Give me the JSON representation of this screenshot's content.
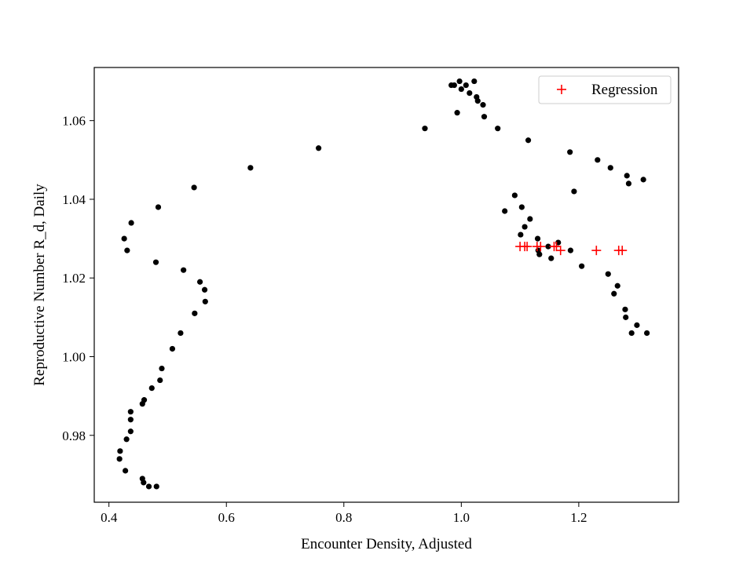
{
  "chart_data": {
    "type": "scatter",
    "title": "",
    "xlabel": "Encounter Density, Adjusted",
    "ylabel": "Reproductive Number R_d, Daily",
    "xlim": [
      0.375,
      1.37
    ],
    "ylim": [
      0.963,
      1.0735
    ],
    "xticks": [
      0.4,
      0.6,
      0.8,
      1.0,
      1.2
    ],
    "xtick_labels": [
      "0.4",
      "0.6",
      "0.8",
      "1.0",
      "1.2"
    ],
    "yticks": [
      0.98,
      1.0,
      1.02,
      1.04,
      1.06
    ],
    "ytick_labels": [
      "0.98",
      "1.00",
      "1.02",
      "1.04",
      "1.06"
    ],
    "grid": false,
    "legend_position": "top-right",
    "colors": {
      "observed": "#000000",
      "regression": "#ff0000",
      "axes": "#000000"
    },
    "series": [
      {
        "marker": "dot",
        "color": "#000000",
        "points": [
          [
            0.481,
            0.967
          ],
          [
            0.468,
            0.967
          ],
          [
            0.459,
            0.968
          ],
          [
            0.457,
            0.969
          ],
          [
            0.428,
            0.971
          ],
          [
            0.418,
            0.974
          ],
          [
            0.419,
            0.976
          ],
          [
            0.43,
            0.979
          ],
          [
            0.437,
            0.981
          ],
          [
            0.437,
            0.984
          ],
          [
            0.437,
            0.986
          ],
          [
            0.457,
            0.988
          ],
          [
            0.46,
            0.989
          ],
          [
            0.473,
            0.992
          ],
          [
            0.487,
            0.994
          ],
          [
            0.49,
            0.997
          ],
          [
            0.508,
            1.002
          ],
          [
            0.522,
            1.006
          ],
          [
            0.546,
            1.011
          ],
          [
            0.564,
            1.014
          ],
          [
            0.563,
            1.017
          ],
          [
            0.555,
            1.019
          ],
          [
            0.527,
            1.022
          ],
          [
            0.48,
            1.024
          ],
          [
            0.431,
            1.027
          ],
          [
            0.426,
            1.03
          ],
          [
            0.438,
            1.034
          ],
          [
            0.484,
            1.038
          ],
          [
            0.545,
            1.043
          ],
          [
            0.641,
            1.048
          ],
          [
            0.757,
            1.053
          ],
          [
            0.938,
            1.058
          ],
          [
            0.993,
            1.062
          ],
          [
            0.983,
            1.069
          ],
          [
            0.988,
            1.069
          ],
          [
            0.997,
            1.07
          ],
          [
            1.0,
            1.068
          ],
          [
            1.008,
            1.069
          ],
          [
            1.014,
            1.067
          ],
          [
            1.022,
            1.07
          ],
          [
            1.026,
            1.066
          ],
          [
            1.028,
            1.065
          ],
          [
            1.037,
            1.064
          ],
          [
            1.039,
            1.061
          ],
          [
            1.062,
            1.058
          ],
          [
            1.114,
            1.055
          ],
          [
            1.185,
            1.052
          ],
          [
            1.232,
            1.05
          ],
          [
            1.254,
            1.048
          ],
          [
            1.282,
            1.046
          ],
          [
            1.31,
            1.045
          ],
          [
            1.285,
            1.044
          ],
          [
            1.192,
            1.042
          ],
          [
            1.091,
            1.041
          ],
          [
            1.103,
            1.038
          ],
          [
            1.074,
            1.037
          ],
          [
            1.117,
            1.035
          ],
          [
            1.108,
            1.033
          ],
          [
            1.101,
            1.031
          ],
          [
            1.13,
            1.03
          ],
          [
            1.165,
            1.029
          ],
          [
            1.148,
            1.028
          ],
          [
            1.186,
            1.027
          ],
          [
            1.131,
            1.027
          ],
          [
            1.133,
            1.026
          ],
          [
            1.153,
            1.025
          ],
          [
            1.205,
            1.023
          ],
          [
            1.25,
            1.021
          ],
          [
            1.266,
            1.018
          ],
          [
            1.26,
            1.016
          ],
          [
            1.279,
            1.012
          ],
          [
            1.28,
            1.01
          ],
          [
            1.299,
            1.008
          ],
          [
            1.316,
            1.006
          ],
          [
            1.29,
            1.006
          ]
        ]
      },
      {
        "name": "Regression",
        "marker": "plus",
        "color": "#ff0000",
        "points": [
          [
            1.1,
            1.028
          ],
          [
            1.108,
            1.028
          ],
          [
            1.112,
            1.028
          ],
          [
            1.129,
            1.028
          ],
          [
            1.135,
            1.028
          ],
          [
            1.158,
            1.028
          ],
          [
            1.162,
            1.028
          ],
          [
            1.169,
            1.027
          ],
          [
            1.23,
            1.027
          ],
          [
            1.268,
            1.027
          ],
          [
            1.274,
            1.027
          ]
        ]
      }
    ]
  }
}
